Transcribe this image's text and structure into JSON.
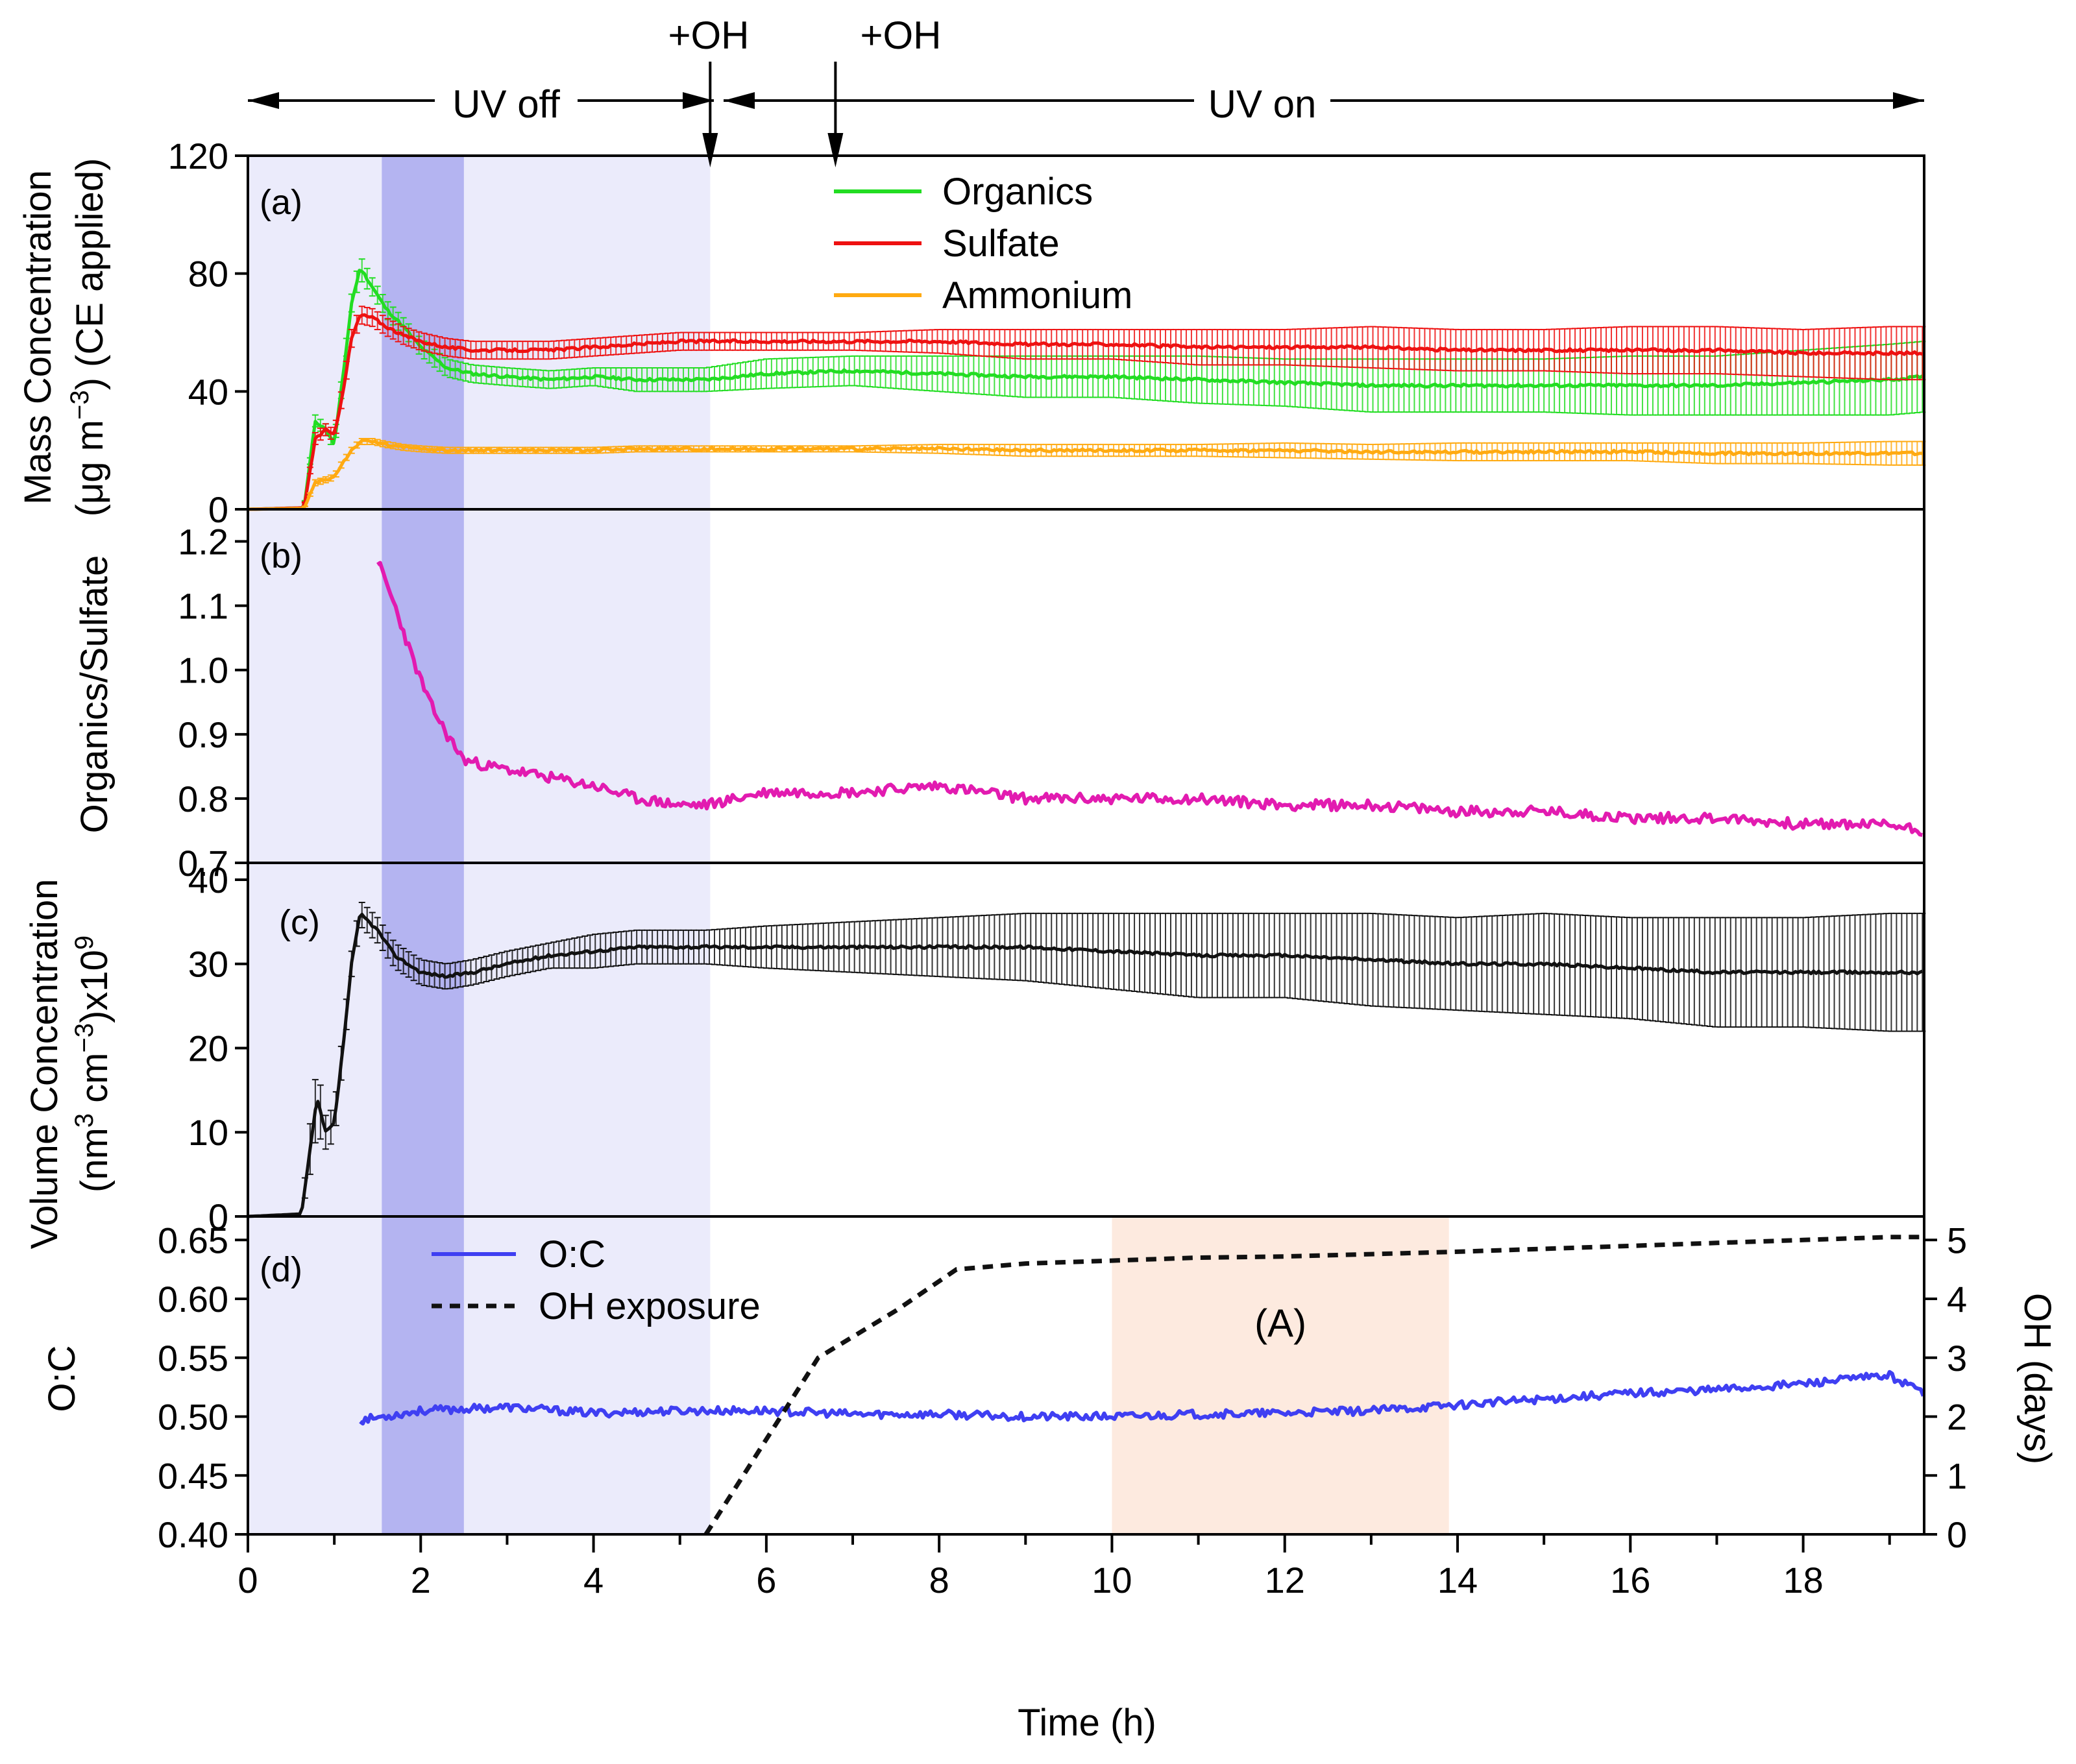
{
  "chart_data": [
    {
      "id": "a",
      "type": "line",
      "panel_label": "(a)",
      "ylabel_line1": "Mass Concentration",
      "ylabel_line2_pre": "(μg m",
      "ylabel_line2_sup": "−3",
      "ylabel_line2_post": ") (CE applied)",
      "ylim": [
        0,
        120
      ],
      "yticks": [
        "0",
        "40",
        "80",
        "120"
      ],
      "series": [
        {
          "name": "Organics",
          "color": "#22dd22",
          "x": [
            0,
            0.65,
            0.78,
            0.9,
            1.0,
            1.1,
            1.2,
            1.3,
            1.45,
            1.6,
            1.8,
            2.0,
            2.3,
            2.6,
            3.0,
            3.5,
            4.0,
            4.5,
            5.0,
            5.3,
            6,
            7,
            8,
            9,
            10,
            11,
            12,
            13,
            14,
            15,
            16,
            17,
            18,
            19,
            19.4
          ],
          "y": [
            0,
            0.5,
            30,
            27,
            22,
            45,
            70,
            82,
            75,
            68,
            62,
            55,
            48,
            46,
            45,
            44,
            45,
            44,
            44,
            44,
            46,
            47,
            46,
            45,
            45,
            44,
            43,
            42,
            42,
            42,
            42,
            42,
            43,
            44,
            45
          ],
          "err": [
            0,
            0,
            2,
            2,
            2,
            3,
            3,
            4,
            3,
            3,
            3,
            3,
            3,
            3,
            3,
            3,
            3,
            4,
            4,
            4,
            5,
            5,
            6,
            7,
            7,
            8,
            8,
            9,
            9,
            9,
            10,
            10,
            11,
            12,
            12
          ]
        },
        {
          "name": "Sulfate",
          "color": "#ee1111",
          "x": [
            0,
            0.65,
            0.78,
            0.9,
            1.0,
            1.1,
            1.2,
            1.3,
            1.45,
            1.6,
            1.8,
            2.0,
            2.3,
            2.6,
            3.0,
            3.5,
            4.0,
            4.5,
            5.0,
            5.3,
            6,
            7,
            8,
            9,
            10,
            11,
            12,
            13,
            14,
            15,
            16,
            17,
            18,
            19,
            19.4
          ],
          "y": [
            0,
            0.5,
            24,
            27,
            25,
            40,
            58,
            66,
            65,
            62,
            59,
            57,
            55,
            54,
            54,
            54,
            55,
            56,
            57,
            57,
            57,
            57,
            57,
            56,
            56,
            55,
            55,
            55,
            54,
            54,
            54,
            54,
            53,
            53,
            53
          ],
          "err": [
            0,
            0,
            2,
            2,
            2,
            3,
            3,
            3,
            3,
            3,
            3,
            3,
            3,
            3,
            3,
            3,
            3,
            3,
            3,
            3,
            3,
            3,
            4,
            5,
            5,
            6,
            6,
            7,
            7,
            7,
            8,
            8,
            8,
            9,
            9
          ]
        },
        {
          "name": "Ammonium",
          "color": "#ffaa11",
          "x": [
            0,
            0.65,
            0.78,
            0.9,
            1.0,
            1.1,
            1.2,
            1.3,
            1.45,
            1.6,
            1.8,
            2.0,
            2.3,
            2.6,
            3.0,
            3.5,
            4.0,
            4.5,
            5.0,
            5.3,
            6,
            7,
            8,
            9,
            10,
            11,
            12,
            13,
            14,
            15,
            16,
            17,
            18,
            19,
            19.4
          ],
          "y": [
            0,
            0.3,
            9,
            10,
            11,
            16,
            20,
            23,
            23,
            22,
            21,
            20.5,
            20,
            20,
            20,
            20,
            20,
            20.5,
            20.5,
            20.5,
            20.5,
            20.5,
            20.5,
            20,
            20,
            20,
            20,
            19.5,
            19.5,
            19.5,
            19.5,
            19,
            19,
            19,
            19
          ],
          "err": [
            0,
            0,
            1,
            1,
            1,
            1,
            1,
            1,
            1,
            1,
            1,
            1,
            1,
            1,
            1,
            1,
            1,
            1,
            1,
            1,
            1,
            1,
            1.5,
            2,
            2,
            2,
            2.5,
            2.5,
            3,
            3,
            3,
            3.5,
            3.5,
            4,
            4
          ]
        }
      ]
    },
    {
      "id": "b",
      "type": "line",
      "panel_label": "(b)",
      "ylabel": "Organics/Sulfate",
      "ylim": [
        0.7,
        1.25
      ],
      "yticks": [
        "0.7",
        "0.8",
        "0.9",
        "1.0",
        "1.1",
        "1.2"
      ],
      "series": [
        {
          "name": "Organics/Sulfate",
          "color": "#e21bb0",
          "x": [
            1.5,
            1.7,
            1.9,
            2.1,
            2.3,
            2.5,
            2.8,
            3.2,
            3.6,
            4.0,
            4.5,
            5.0,
            5.3,
            6,
            7,
            8,
            9,
            10,
            11,
            12,
            13,
            14,
            15,
            16,
            17,
            18,
            19,
            19.4
          ],
          "y": [
            1.17,
            1.1,
            1.02,
            0.95,
            0.9,
            0.86,
            0.85,
            0.84,
            0.83,
            0.82,
            0.8,
            0.79,
            0.79,
            0.81,
            0.81,
            0.82,
            0.8,
            0.8,
            0.8,
            0.79,
            0.79,
            0.78,
            0.78,
            0.77,
            0.77,
            0.76,
            0.76,
            0.75
          ]
        }
      ]
    },
    {
      "id": "c",
      "type": "line",
      "panel_label": "(c)",
      "ylabel_line1": "Volume Concentration",
      "ylabel_line2_a": "(nm",
      "ylabel_line2_sup1": "3",
      "ylabel_line2_b": " cm",
      "ylabel_line2_sup2": "−3",
      "ylabel_line2_c": ")x10",
      "ylabel_line2_sup3": "9",
      "ylim": [
        0,
        42
      ],
      "yticks": [
        "0",
        "10",
        "20",
        "30",
        "40"
      ],
      "series": [
        {
          "name": "Volume",
          "color": "#111111",
          "x": [
            0,
            0.62,
            0.72,
            0.8,
            0.85,
            0.9,
            1.0,
            1.1,
            1.2,
            1.3,
            1.5,
            1.7,
            2.0,
            2.3,
            2.6,
            3.0,
            3.5,
            4.0,
            4.5,
            5.0,
            5.3,
            6,
            7,
            8,
            9,
            10,
            11,
            12,
            13,
            14,
            15,
            16,
            17,
            18,
            19,
            19.4
          ],
          "y": [
            0,
            0.3,
            8,
            14,
            12,
            10,
            11,
            20,
            30,
            36,
            34,
            31,
            29,
            28.5,
            29,
            30,
            31,
            31.5,
            32,
            32,
            32,
            32,
            32,
            32,
            32,
            31.5,
            31,
            31,
            30.5,
            30,
            30,
            29.5,
            29,
            29,
            29,
            29
          ],
          "err": [
            0,
            0,
            3,
            4,
            3,
            2,
            2,
            2,
            1.5,
            1.5,
            1.5,
            1.5,
            1.5,
            1.5,
            1.5,
            1.5,
            1.5,
            2,
            2,
            2,
            2,
            2.5,
            3,
            3.5,
            4,
            4.5,
            5,
            5,
            5.5,
            5.5,
            6,
            6,
            6.5,
            6.5,
            7,
            7
          ]
        }
      ]
    },
    {
      "id": "d",
      "type": "line",
      "panel_label": "(d)",
      "ylabel": "O:C",
      "ylim": [
        0.4,
        0.67
      ],
      "yticks": [
        "0.40",
        "0.45",
        "0.50",
        "0.55",
        "0.60",
        "0.65"
      ],
      "y2label": "OH (days)",
      "y2lim": [
        0,
        5.4
      ],
      "y2ticks": [
        "0",
        "1",
        "2",
        "3",
        "4",
        "5"
      ],
      "annotation": "(A)",
      "series": [
        {
          "name": "O:C",
          "color": "#3f3ff2",
          "axis": "left",
          "x": [
            1.3,
            2,
            3,
            4,
            5,
            6,
            7,
            8,
            9,
            10,
            11,
            12,
            13,
            14,
            15,
            16,
            17,
            18,
            19,
            19.4
          ],
          "y": [
            0.497,
            0.505,
            0.508,
            0.503,
            0.505,
            0.505,
            0.502,
            0.502,
            0.5,
            0.5,
            0.502,
            0.503,
            0.505,
            0.51,
            0.515,
            0.52,
            0.523,
            0.528,
            0.535,
            0.52
          ]
        },
        {
          "name": "OH exposure",
          "color": "#111111",
          "axis": "right",
          "dashed": true,
          "x": [
            5.3,
            6.6,
            7.5,
            8.2,
            9,
            10,
            11,
            12,
            13,
            14,
            15,
            16,
            17,
            18,
            19,
            19.4
          ],
          "y": [
            0,
            3.0,
            3.8,
            4.5,
            4.6,
            4.65,
            4.7,
            4.72,
            4.76,
            4.8,
            4.85,
            4.9,
            4.95,
            5.0,
            5.05,
            5.05
          ]
        }
      ]
    }
  ],
  "x_axis": {
    "label": "Time (h)",
    "xlim": [
      0,
      19.4
    ],
    "ticks": [
      "0",
      "2",
      "4",
      "6",
      "8",
      "10",
      "12",
      "14",
      "16",
      "18"
    ]
  },
  "shading": {
    "uv_off_range_h": [
      0,
      5.35
    ],
    "dark_band_h": [
      1.55,
      2.5
    ],
    "region_a_h": [
      10,
      13.9
    ],
    "colors": {
      "uv_off": "#ebebfb",
      "dark_band": "#b4b4f1",
      "region_a": "#fdeadf"
    }
  },
  "top_annotations": {
    "uv_off": "UV off",
    "uv_on": "UV on",
    "oh1": "+OH",
    "oh2": "+OH",
    "oh1_time_h": 5.35,
    "oh2_time_h": 6.8
  },
  "legend_a": [
    "Organics",
    "Sulfate",
    "Ammonium"
  ],
  "legend_d": [
    "O:C",
    "OH exposure"
  ]
}
